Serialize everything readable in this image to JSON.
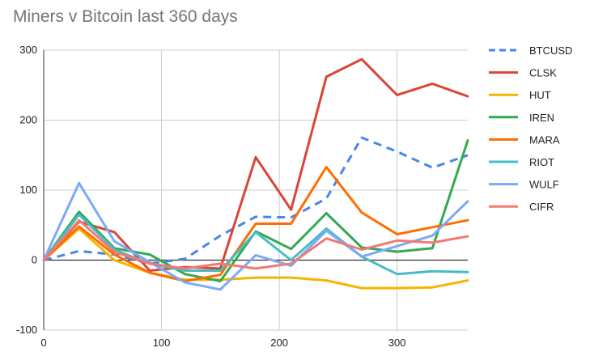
{
  "chart_data": {
    "type": "line",
    "title": "Miners v Bitcoin last 360 days",
    "xlabel": "",
    "ylabel": "",
    "xlim": [
      0,
      360
    ],
    "ylim": [
      -100,
      300
    ],
    "x_ticks": [
      0,
      100,
      200,
      300
    ],
    "y_ticks": [
      -100,
      0,
      100,
      200,
      300
    ],
    "grid": true,
    "legend_position": "right",
    "x": [
      0,
      30,
      60,
      90,
      120,
      150,
      180,
      210,
      240,
      270,
      300,
      330,
      360
    ],
    "series": [
      {
        "name": "BTCUSD",
        "color": "#4a86e8",
        "dashed": true,
        "values": [
          0,
          13,
          8,
          -5,
          2,
          35,
          62,
          61,
          88,
          175,
          155,
          132,
          150
        ]
      },
      {
        "name": "CLSK",
        "color": "#db4437",
        "dashed": false,
        "values": [
          0,
          55,
          40,
          -15,
          -10,
          -12,
          147,
          72,
          262,
          287,
          236,
          252,
          234
        ]
      },
      {
        "name": "HUT",
        "color": "#f4b400",
        "dashed": false,
        "values": [
          0,
          45,
          0,
          -18,
          -28,
          -28,
          -25,
          -25,
          -29,
          -40,
          -40,
          -39,
          -29
        ]
      },
      {
        "name": "IREN",
        "color": "#34a853",
        "dashed": false,
        "values": [
          0,
          69,
          17,
          8,
          -20,
          -30,
          41,
          16,
          67,
          18,
          12,
          17,
          171
        ]
      },
      {
        "name": "MARA",
        "color": "#ff6d01",
        "dashed": false,
        "values": [
          0,
          48,
          8,
          -18,
          -30,
          -21,
          52,
          52,
          133,
          68,
          37,
          47,
          57
        ]
      },
      {
        "name": "RIOT",
        "color": "#46bdc6",
        "dashed": false,
        "values": [
          0,
          65,
          15,
          -5,
          -15,
          -15,
          40,
          0,
          45,
          5,
          -20,
          -16,
          -17
        ]
      },
      {
        "name": "WULF",
        "color": "#7baaf7",
        "dashed": false,
        "values": [
          0,
          110,
          27,
          -3,
          -32,
          -42,
          7,
          -8,
          42,
          5,
          20,
          35,
          84
        ]
      },
      {
        "name": "CIFR",
        "color": "#f07b72",
        "dashed": false,
        "values": [
          0,
          57,
          12,
          -5,
          -12,
          -5,
          -12,
          -5,
          31,
          15,
          28,
          25,
          34
        ]
      }
    ]
  }
}
